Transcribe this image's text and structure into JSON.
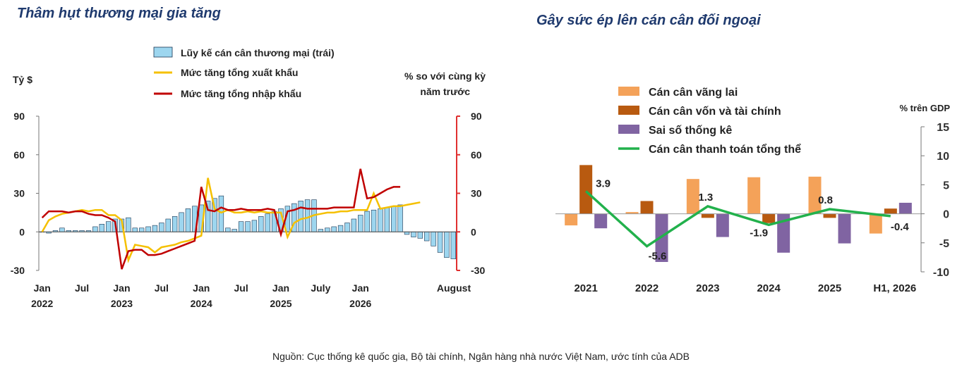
{
  "left_title": "Thâm hụt thương mại gia tăng",
  "right_title": "Gây sức ép lên cán cân đối ngoại",
  "source": "Nguồn: Cục thống kê quốc gia, Bộ tài chính, Ngân hàng nhà nước Việt Nam, ước tính của ADB",
  "colors": {
    "bar": "#9dd6ef",
    "bar_edge": "#1b3552",
    "export": "#f5c000",
    "import": "#c00000",
    "right_axis": "#e03030",
    "current": "#f4a259",
    "capital": "#b85a10",
    "errors": "#8064a2",
    "overall": "#22b14c"
  },
  "chart_data": [
    {
      "type": "bar+line",
      "left_unit": "Tỷ $",
      "right_unit_line1": "% so với cùng kỳ",
      "right_unit_line2": "năm trước",
      "ylim": [
        -30,
        90
      ],
      "y_ticks": [
        -30,
        0,
        30,
        60,
        90
      ],
      "x_labels": [
        {
          "i": 0,
          "top": "Jan",
          "bottom": "2022"
        },
        {
          "i": 6,
          "top": "Jul",
          "bottom": ""
        },
        {
          "i": 12,
          "top": "Jan",
          "bottom": "2023"
        },
        {
          "i": 18,
          "top": "Jul",
          "bottom": ""
        },
        {
          "i": 24,
          "top": "Jan",
          "bottom": "2024"
        },
        {
          "i": 30,
          "top": "Jul",
          "bottom": ""
        },
        {
          "i": 36,
          "top": "Jan",
          "bottom": "2025"
        },
        {
          "i": 42,
          "top": "July",
          "bottom": ""
        },
        {
          "i": 48,
          "top": "Jan",
          "bottom": "2026"
        },
        {
          "i": 55,
          "top": "August",
          "bottom": ""
        }
      ],
      "series": [
        {
          "name": "Lũy kế cán cân thương mại (trái)",
          "kind": "bar",
          "values": [
            0,
            -1,
            1,
            3,
            1,
            1,
            1,
            1,
            4,
            6,
            8,
            10,
            10,
            11,
            3,
            3,
            4,
            5,
            7,
            10,
            12,
            15,
            18,
            20,
            21,
            24,
            26,
            28,
            3,
            2,
            8,
            8,
            9,
            12,
            14,
            16,
            18,
            20,
            22,
            24,
            25,
            25,
            2,
            3,
            4,
            5,
            7,
            10,
            13,
            16,
            17,
            18,
            19,
            20,
            21,
            -2,
            -4,
            -5,
            -7,
            -11,
            -16,
            -20,
            -21
          ]
        },
        {
          "name": "Mức tăng tổng xuất khẩu",
          "kind": "line",
          "values": [
            0,
            9,
            12,
            14,
            15,
            16,
            17,
            16,
            17,
            17,
            13,
            13,
            9,
            -22,
            -10,
            -11,
            -12,
            -16,
            -12,
            -11,
            -10,
            -8,
            -7,
            -5,
            -3,
            42,
            18,
            15,
            17,
            15,
            15,
            16,
            15,
            16,
            15,
            15,
            15,
            -4,
            7,
            10,
            11,
            13,
            14,
            15,
            15,
            16,
            16,
            17,
            17,
            17,
            30,
            18,
            19,
            20,
            20,
            21,
            22,
            23
          ]
        },
        {
          "name": "Mức tăng tổng nhập khẩu",
          "kind": "line",
          "values": [
            11,
            16,
            16,
            16,
            15,
            16,
            16,
            14,
            13,
            13,
            11,
            8,
            -29,
            -15,
            -14,
            -14,
            -18,
            -18,
            -17,
            -15,
            -13,
            -11,
            -9,
            -7,
            35,
            17,
            16,
            19,
            17,
            17,
            18,
            17,
            17,
            17,
            18,
            17,
            -2,
            16,
            17,
            19,
            18,
            18,
            18,
            18,
            19,
            19,
            19,
            19,
            49,
            26,
            27,
            30,
            33,
            35,
            35
          ]
        }
      ]
    },
    {
      "type": "bar+line",
      "unit": "% trên GDP",
      "ylim": [
        -10,
        15
      ],
      "y_ticks": [
        -10,
        -5,
        0,
        5,
        10,
        15
      ],
      "categories": [
        "2021",
        "2022",
        "2023",
        "2024",
        "2025",
        "H1, 2026"
      ],
      "series": [
        {
          "name": "Cán cân vãng lai",
          "kind": "bar",
          "values": [
            -2.0,
            0.3,
            6.0,
            6.3,
            6.4,
            -3.4
          ]
        },
        {
          "name": "Cán cân vốn và tài chính",
          "kind": "bar",
          "values": [
            8.4,
            2.2,
            -0.7,
            -1.6,
            -0.7,
            0.9
          ]
        },
        {
          "name": "Sai số thống kê",
          "kind": "bar",
          "values": [
            -2.5,
            -8.3,
            -4.0,
            -6.7,
            -5.1,
            1.9
          ]
        },
        {
          "name": "Cán cân thanh toán  tổng thể",
          "kind": "line",
          "values": [
            3.9,
            -5.6,
            1.3,
            -1.9,
            0.8,
            -0.4
          ]
        }
      ],
      "data_labels": [
        "3.9",
        "-5.6",
        "1.3",
        "-1.9",
        "0.8",
        "-0.4"
      ]
    }
  ]
}
